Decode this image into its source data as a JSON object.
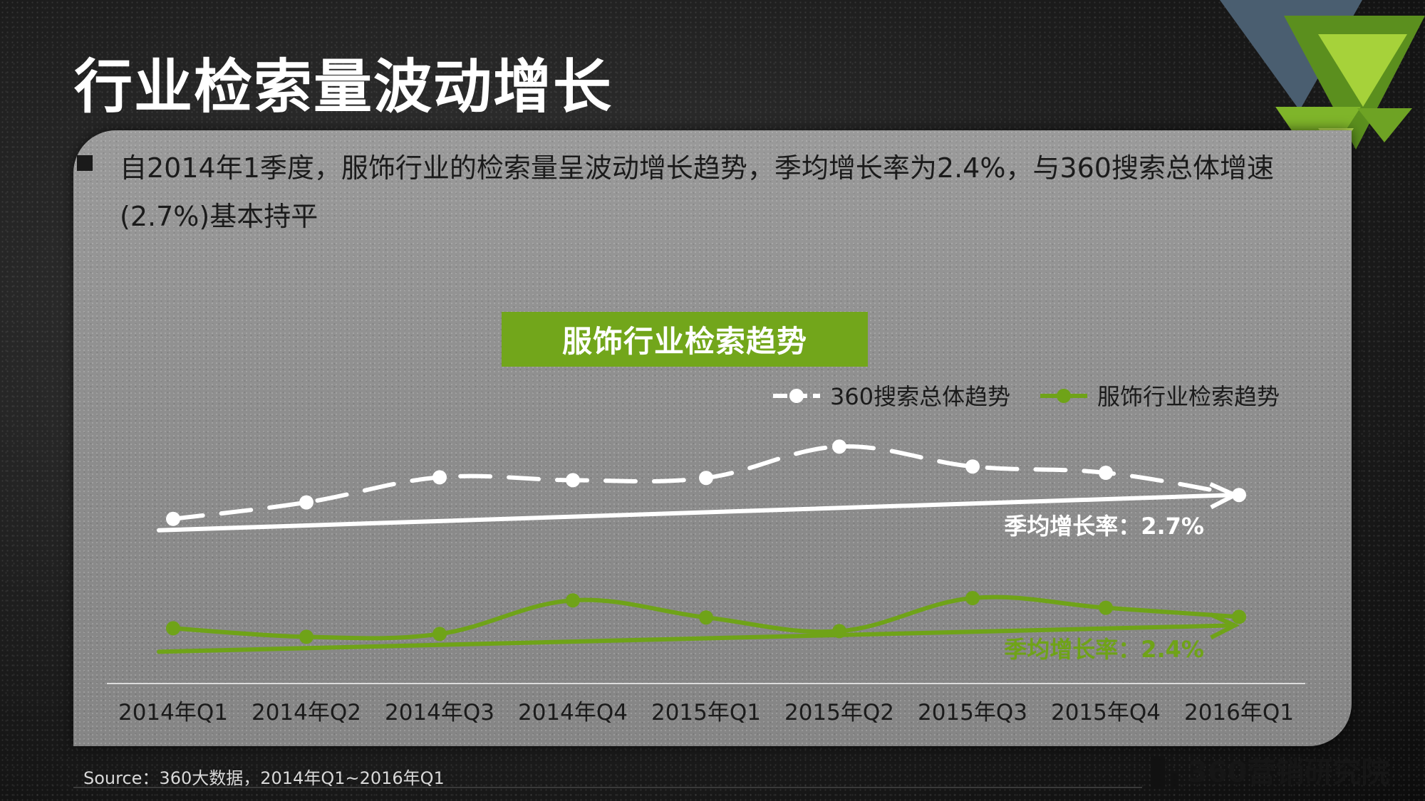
{
  "title": "行业检索量波动增长",
  "summary": "自2014年1季度，服饰行业的检索量呈波动增长趋势，季均增长率为2.4%，与360搜索总体增速(2.7%)基本持平",
  "chart_banner": "服饰行业检索趋势",
  "source": "Source：360大数据，2014年Q1~2016年Q1",
  "brand": "360营销研究院",
  "colors": {
    "accent_green": "#72a61b",
    "series_white": "#ffffff",
    "series_green": "#6fa318"
  },
  "chart_data": {
    "type": "line",
    "categories": [
      "2014年Q1",
      "2014年Q2",
      "2014年Q3",
      "2014年Q4",
      "2015年Q1",
      "2015年Q2",
      "2015年Q3",
      "2015年Q4",
      "2016年Q1"
    ],
    "series": [
      {
        "name": "360搜索总体趋势",
        "values": [
          0.14,
          0.43,
          0.87,
          0.82,
          0.86,
          1.41,
          1.06,
          0.95,
          0.56
        ],
        "style": "dashed"
      },
      {
        "name": "服饰行业检索趋势",
        "values": [
          -1.78,
          -1.93,
          -1.88,
          -1.29,
          -1.59,
          -1.83,
          -1.25,
          -1.42,
          -1.58
        ],
        "style": "solid"
      }
    ],
    "annotations": [
      {
        "text": "季均增长率：2.7%",
        "series": "360搜索总体趋势"
      },
      {
        "text": "季均增长率：2.4%",
        "series": "服饰行业检索趋势"
      }
    ],
    "ylim": [
      -2.5,
      2.0
    ],
    "xlabel": "",
    "ylabel": "",
    "grid": false,
    "legend_position": "top-right"
  }
}
